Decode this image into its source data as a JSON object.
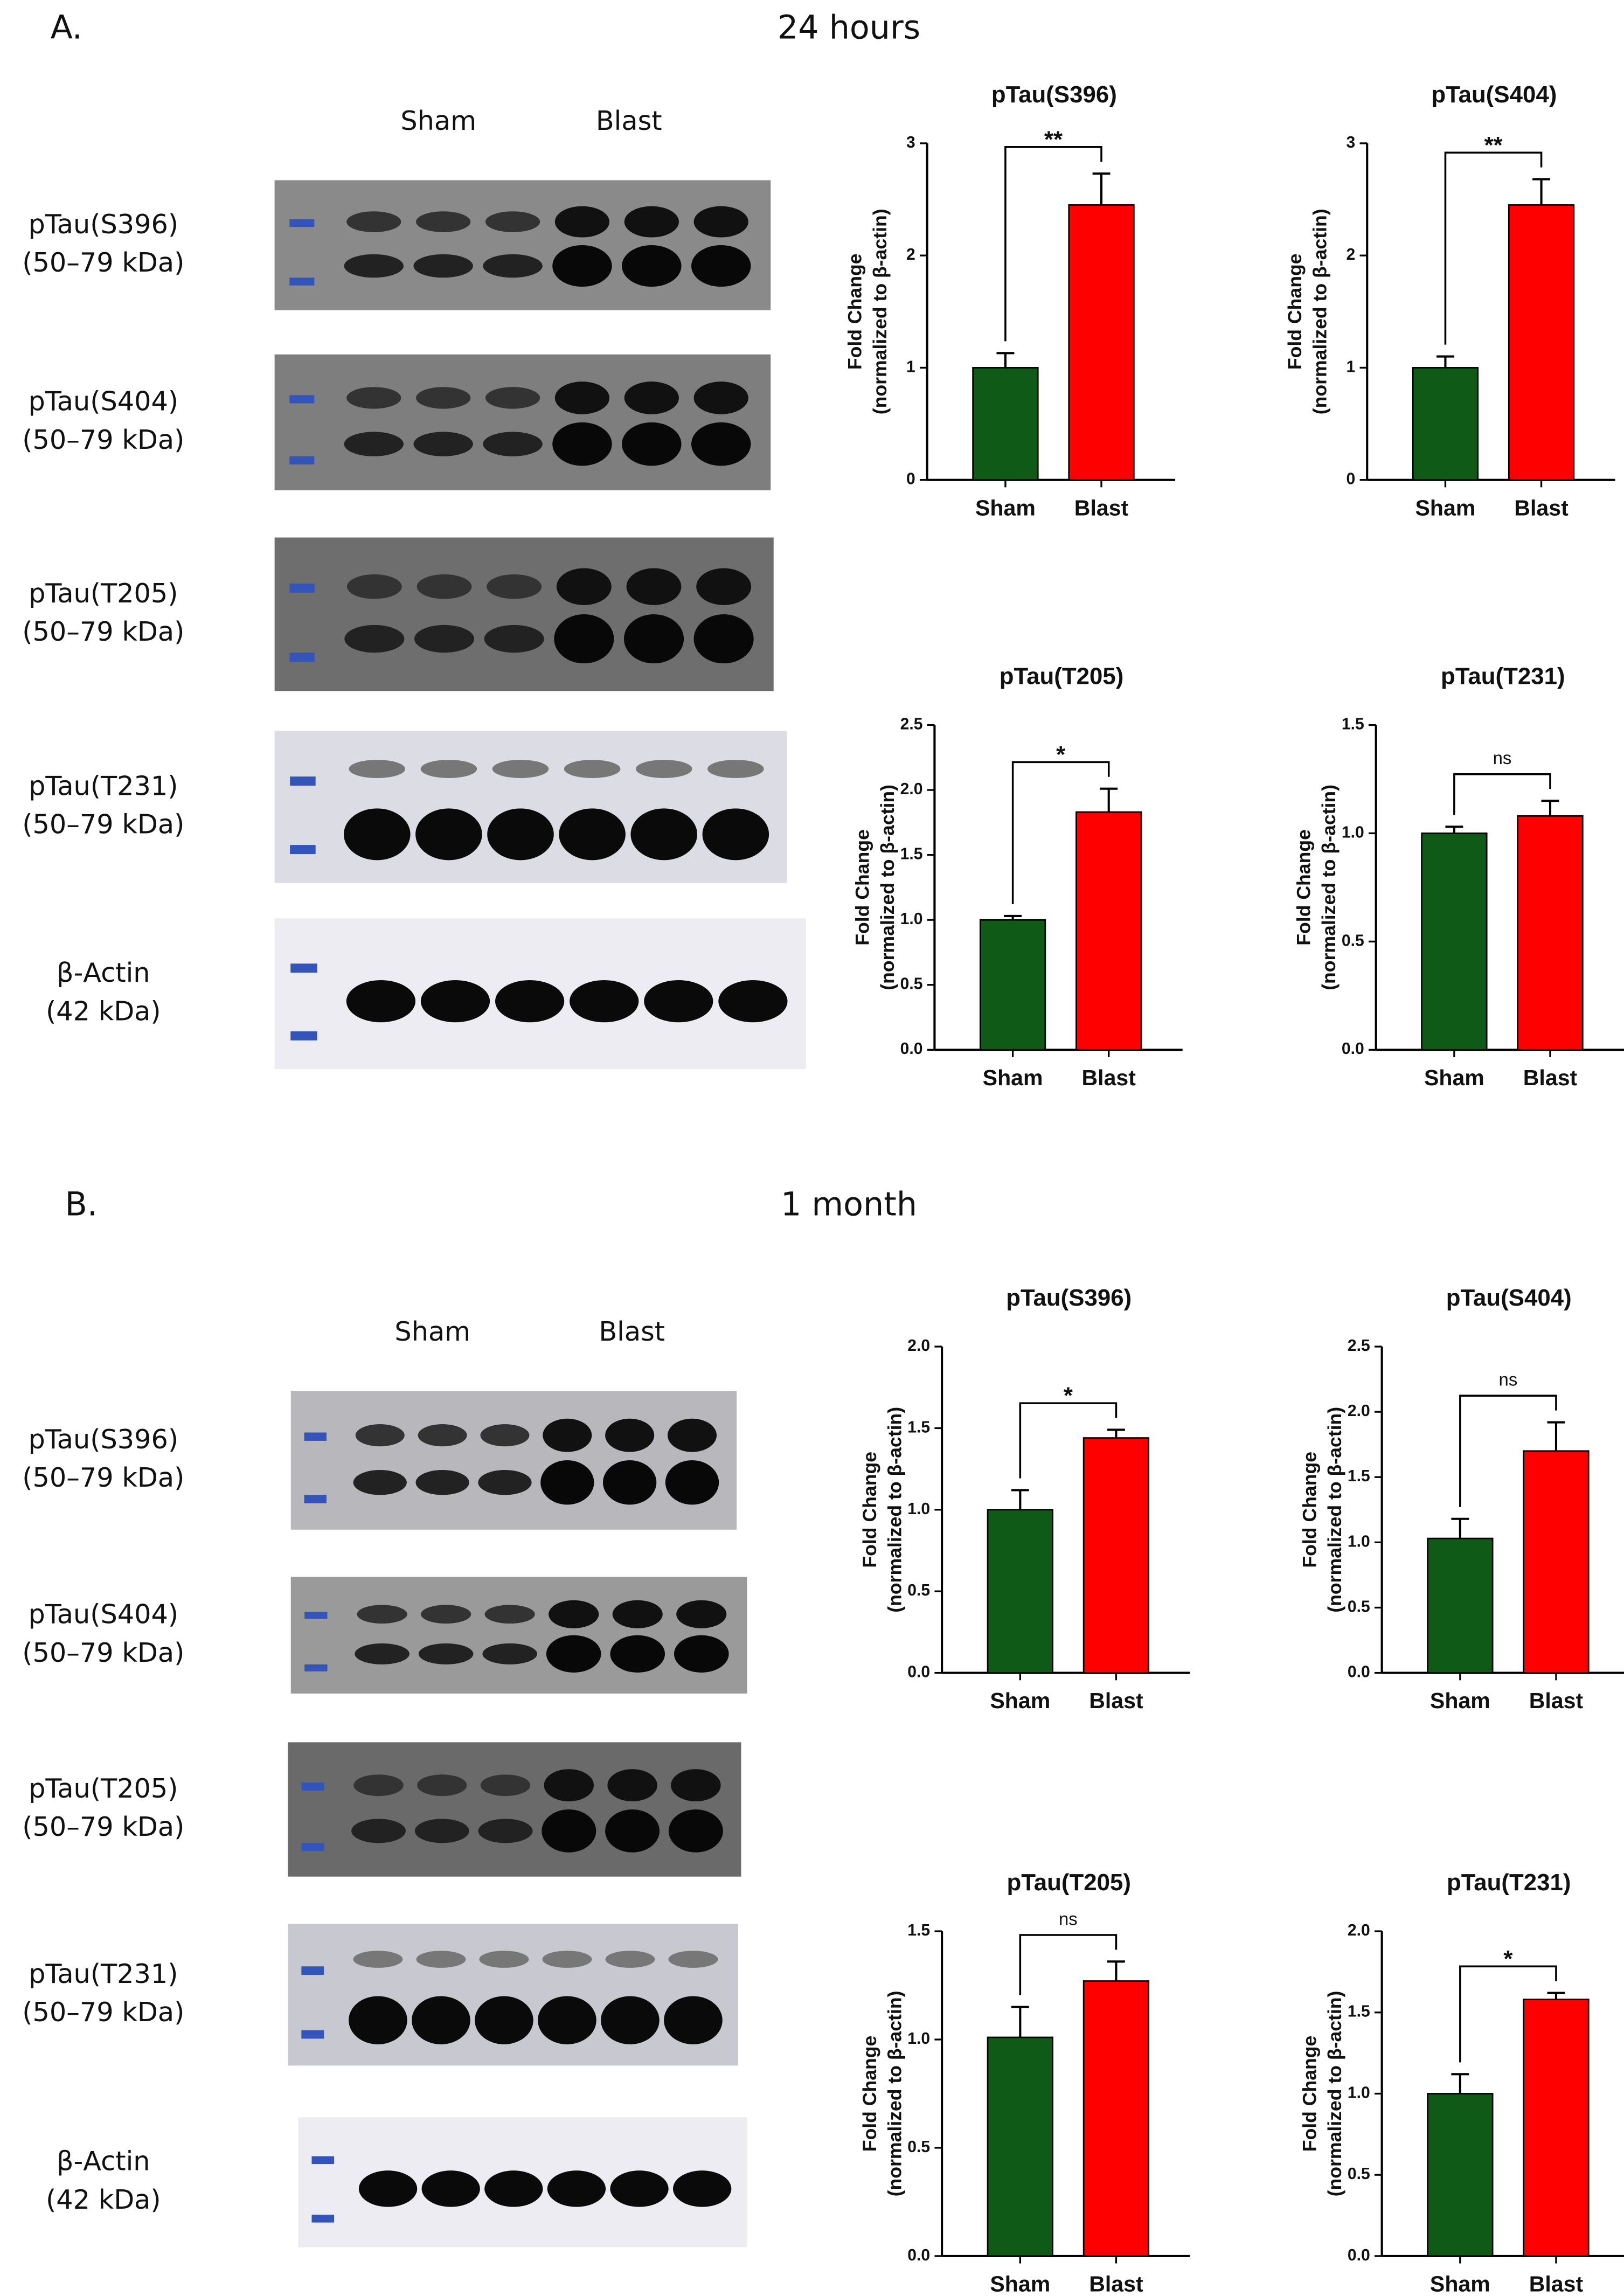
{
  "panels": [
    {
      "label": "A.",
      "title": "24 hours",
      "groups": [
        "Sham",
        "Blast"
      ],
      "blots": [
        {
          "name": "pTau(S396)",
          "size": "(50–79 kDa)"
        },
        {
          "name": "pTau(S404)",
          "size": "(50–79 kDa)"
        },
        {
          "name": "pTau(T205)",
          "size": "(50–79 kDa)"
        },
        {
          "name": "pTau(T231)",
          "size": "(50–79 kDa)"
        },
        {
          "name": "β-Actin",
          "size": "(42 kDa)"
        }
      ]
    },
    {
      "label": "B.",
      "title": "1 month",
      "groups": [
        "Sham",
        "Blast"
      ],
      "blots": [
        {
          "name": "pTau(S396)",
          "size": "(50–79 kDa)"
        },
        {
          "name": "pTau(S404)",
          "size": "(50–79 kDa)"
        },
        {
          "name": "pTau(T205)",
          "size": "(50–79 kDa)"
        },
        {
          "name": "pTau(T231)",
          "size": "(50–79 kDa)"
        },
        {
          "name": "β-Actin",
          "size": "(42 kDa)"
        }
      ]
    }
  ],
  "chart_data": [
    {
      "type": "bar",
      "title": "pTau(S396)",
      "ylabel": [
        "Fold Change",
        "(normalized to β-actin)"
      ],
      "categories": [
        "Sham",
        "Blast"
      ],
      "values": [
        1.0,
        2.45
      ],
      "errors": [
        0.13,
        0.28
      ],
      "colors": [
        "#0e5a16",
        "#ff0000"
      ],
      "ylim": [
        0,
        3
      ],
      "yticks": [
        0,
        1,
        2,
        3
      ],
      "annotation": "**"
    },
    {
      "type": "bar",
      "title": "pTau(S404)",
      "ylabel": [
        "Fold Change",
        "(normalized to β-actin)"
      ],
      "categories": [
        "Sham",
        "Blast"
      ],
      "values": [
        1.0,
        2.45
      ],
      "errors": [
        0.1,
        0.23
      ],
      "colors": [
        "#0e5a16",
        "#ff0000"
      ],
      "ylim": [
        0,
        3
      ],
      "yticks": [
        0,
        1,
        2,
        3
      ],
      "annotation": "**"
    },
    {
      "type": "bar",
      "title": "pTau(T205)",
      "ylabel": [
        "Fold Change",
        "(normalized to β-actin)"
      ],
      "categories": [
        "Sham",
        "Blast"
      ],
      "values": [
        1.0,
        1.83
      ],
      "errors": [
        0.03,
        0.18
      ],
      "colors": [
        "#0e5a16",
        "#ff0000"
      ],
      "ylim": [
        0,
        2.5
      ],
      "yticks": [
        {
          "value": 0,
          "label": "0.0"
        },
        {
          "value": 0.5,
          "label": "0.5"
        },
        {
          "value": 1,
          "label": "1.0"
        },
        {
          "value": 1.5,
          "label": "1.5"
        },
        {
          "value": 2,
          "label": "2.0"
        },
        {
          "value": 2.5,
          "label": "2.5"
        }
      ],
      "annotation": "*"
    },
    {
      "type": "bar",
      "title": "pTau(T231)",
      "ylabel": [
        "Fold Change",
        "(normalized to β-actin)"
      ],
      "categories": [
        "Sham",
        "Blast"
      ],
      "values": [
        1.0,
        1.08
      ],
      "errors": [
        0.03,
        0.07
      ],
      "colors": [
        "#0e5a16",
        "#ff0000"
      ],
      "ylim": [
        0,
        1.5
      ],
      "yticks": [
        {
          "value": 0,
          "label": "0.0"
        },
        {
          "value": 0.5,
          "label": "0.5"
        },
        {
          "value": 1,
          "label": "1.0"
        },
        {
          "value": 1.5,
          "label": "1.5"
        }
      ],
      "annotation": "ns"
    },
    {
      "type": "bar",
      "title": "pTau(S396)",
      "ylabel": [
        "Fold Change",
        "(normalized to β-actin)"
      ],
      "categories": [
        "Sham",
        "Blast"
      ],
      "values": [
        1.0,
        1.44
      ],
      "errors": [
        0.12,
        0.05
      ],
      "colors": [
        "#0e5a16",
        "#ff0000"
      ],
      "ylim": [
        0,
        2
      ],
      "yticks": [
        {
          "value": 0,
          "label": "0.0"
        },
        {
          "value": 0.5,
          "label": "0.5"
        },
        {
          "value": 1,
          "label": "1.0"
        },
        {
          "value": 1.5,
          "label": "1.5"
        },
        {
          "value": 2,
          "label": "2.0"
        }
      ],
      "annotation": "*"
    },
    {
      "type": "bar",
      "title": "pTau(S404)",
      "ylabel": [
        "Fold Change",
        "(normalized to β-actin)"
      ],
      "categories": [
        "Sham",
        "Blast"
      ],
      "values": [
        1.03,
        1.7
      ],
      "errors": [
        0.15,
        0.22
      ],
      "colors": [
        "#0e5a16",
        "#ff0000"
      ],
      "ylim": [
        0,
        2.5
      ],
      "yticks": [
        {
          "value": 0,
          "label": "0.0"
        },
        {
          "value": 0.5,
          "label": "0.5"
        },
        {
          "value": 1,
          "label": "1.0"
        },
        {
          "value": 1.5,
          "label": "1.5"
        },
        {
          "value": 2,
          "label": "2.0"
        },
        {
          "value": 2.5,
          "label": "2.5"
        }
      ],
      "annotation": "ns"
    },
    {
      "type": "bar",
      "title": "pTau(T205)",
      "ylabel": [
        "Fold Change",
        "(normalized to β-actin)"
      ],
      "categories": [
        "Sham",
        "Blast"
      ],
      "values": [
        1.01,
        1.27
      ],
      "errors": [
        0.14,
        0.09
      ],
      "colors": [
        "#0e5a16",
        "#ff0000"
      ],
      "ylim": [
        0,
        1.5
      ],
      "yticks": [
        {
          "value": 0,
          "label": "0.0"
        },
        {
          "value": 0.5,
          "label": "0.5"
        },
        {
          "value": 1,
          "label": "1.0"
        },
        {
          "value": 1.5,
          "label": "1.5"
        }
      ],
      "annotation": "ns"
    },
    {
      "type": "bar",
      "title": "pTau(T231)",
      "ylabel": [
        "Fold Change",
        "(normalized to β-actin)"
      ],
      "categories": [
        "Sham",
        "Blast"
      ],
      "values": [
        1.0,
        1.58
      ],
      "errors": [
        0.12,
        0.04
      ],
      "colors": [
        "#0e5a16",
        "#ff0000"
      ],
      "ylim": [
        0,
        2
      ],
      "yticks": [
        {
          "value": 0,
          "label": "0.0"
        },
        {
          "value": 0.5,
          "label": "0.5"
        },
        {
          "value": 1,
          "label": "1.0"
        },
        {
          "value": 1.5,
          "label": "1.5"
        },
        {
          "value": 2,
          "label": "2.0"
        }
      ],
      "annotation": "*"
    }
  ]
}
